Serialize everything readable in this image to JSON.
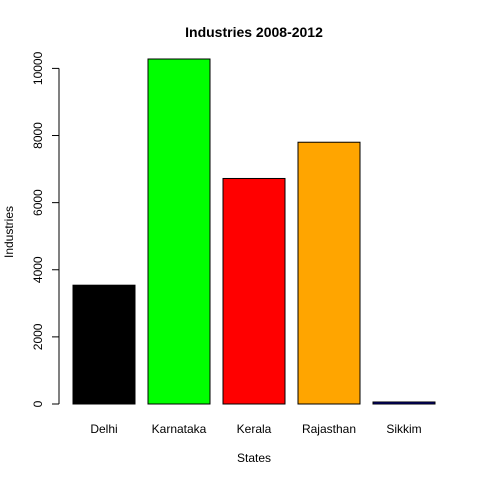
{
  "chart_data": {
    "type": "bar",
    "title": "Industries 2008-2012",
    "xlabel": "States",
    "ylabel": "Industries",
    "categories": [
      "Delhi",
      "Karnataka",
      "Kerala",
      "Rajasthan",
      "Sikkim"
    ],
    "values": [
      3540,
      10280,
      6720,
      7800,
      60
    ],
    "colors": [
      "#000000",
      "#00ff00",
      "#ff0000",
      "#ffa500",
      "#00008b"
    ],
    "ylim": [
      0,
      10280
    ],
    "yticks": [
      0,
      2000,
      4000,
      6000,
      8000,
      10000
    ],
    "grid": false,
    "legend": "none"
  }
}
